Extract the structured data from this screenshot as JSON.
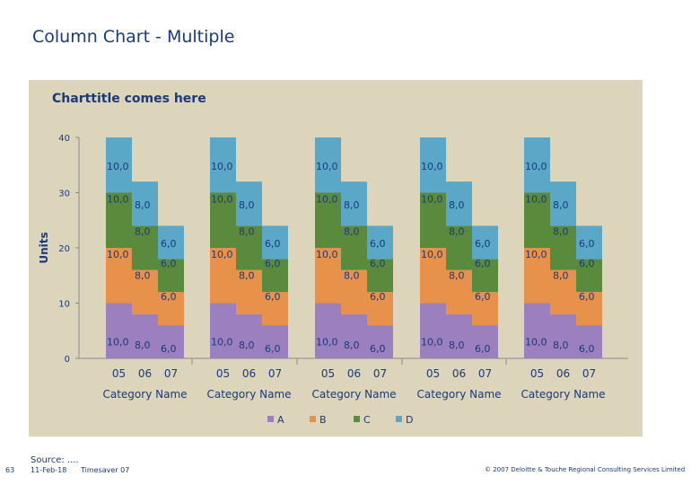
{
  "page_title": "Column Chart - Multiple",
  "source_text": "Source: ....",
  "footer": {
    "page_number": "63",
    "date": "11-Feb-18",
    "product": "Timesaver 07",
    "copyright": "© 2007 Deloitte & Touche Regional Consulting Services Limited"
  },
  "colors": {
    "A": "#9b7fbf",
    "B": "#e8914a",
    "C": "#5a8a3c",
    "D": "#5aa7c8"
  },
  "chart_data": {
    "type": "bar",
    "stacked": true,
    "title": "Charttitle comes here",
    "ylabel": "Units",
    "ylim": [
      0,
      40
    ],
    "y_ticks": [
      0,
      10,
      20,
      30,
      40
    ],
    "groups": [
      "Category Name",
      "Category Name",
      "Category Name",
      "Category Name",
      "Category Name"
    ],
    "categories": [
      "05",
      "06",
      "07"
    ],
    "series": [
      {
        "name": "A",
        "values": [
          10,
          8,
          6
        ],
        "labels": [
          "10,0",
          "8,0",
          "6,0"
        ]
      },
      {
        "name": "B",
        "values": [
          10,
          8,
          6
        ],
        "labels": [
          "10,0",
          "8,0",
          "6,0"
        ]
      },
      {
        "name": "C",
        "values": [
          10,
          8,
          6
        ],
        "labels": [
          "10,0",
          "8,0",
          "6,0"
        ]
      },
      {
        "name": "D",
        "values": [
          10,
          8,
          6
        ],
        "labels": [
          "10,0",
          "8,0",
          "6,0"
        ]
      }
    ],
    "legend": [
      "A",
      "B",
      "C",
      "D"
    ],
    "legend_position": "bottom"
  }
}
